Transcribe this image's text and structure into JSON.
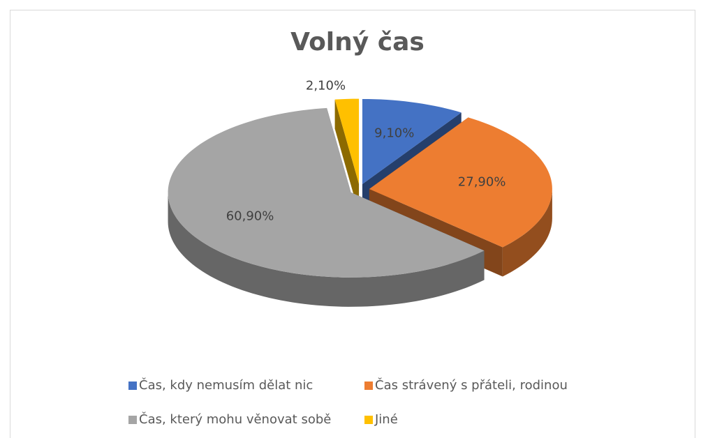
{
  "chart_data": {
    "type": "pie3d",
    "title": "Volný čas",
    "categories": [
      "Čas, kdy nemusím dělat nic",
      "Čas strávený s přáteli, rodinou",
      "Čas, který mohu věnovat sobě",
      "Jiné"
    ],
    "values": [
      9.1,
      27.9,
      60.9,
      2.1
    ],
    "value_labels": [
      "9,10%",
      "27,90%",
      "60,90%",
      "2,10%"
    ],
    "colors": [
      "#4472c4",
      "#ed7d31",
      "#a5a5a5",
      "#ffc000"
    ],
    "legend": "bottom"
  }
}
